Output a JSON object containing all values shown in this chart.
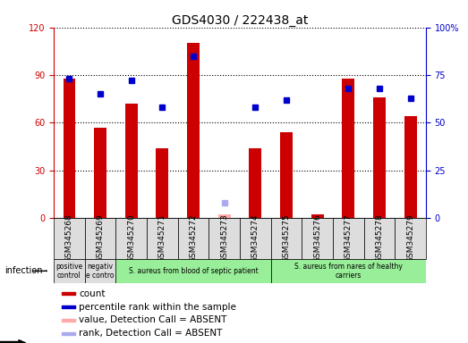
{
  "title": "GDS4030 / 222438_at",
  "samples": [
    "GSM345268",
    "GSM345269",
    "GSM345270",
    "GSM345271",
    "GSM345272",
    "GSM345273",
    "GSM345274",
    "GSM345275",
    "GSM345276",
    "GSM345277",
    "GSM345278",
    "GSM345279"
  ],
  "bar_values": [
    88,
    57,
    72,
    44,
    110,
    2,
    44,
    54,
    2,
    88,
    76,
    64
  ],
  "bar_absent": [
    false,
    false,
    false,
    false,
    false,
    true,
    false,
    false,
    false,
    false,
    false,
    false
  ],
  "rank_values": [
    73,
    65,
    72,
    58,
    85,
    8,
    58,
    62,
    null,
    68,
    68,
    63
  ],
  "rank_absent": [
    false,
    false,
    false,
    false,
    false,
    true,
    false,
    false,
    true,
    false,
    false,
    false
  ],
  "bar_color": "#cc0000",
  "bar_absent_color": "#ffaaaa",
  "rank_color": "#0000cc",
  "rank_absent_color": "#aaaaee",
  "ylim_left": [
    0,
    120
  ],
  "ylim_right": [
    0,
    100
  ],
  "yticks_left": [
    0,
    30,
    60,
    90,
    120
  ],
  "yticks_right": [
    0,
    25,
    50,
    75,
    100
  ],
  "ytick_labels_right": [
    "0",
    "25",
    "50",
    "75",
    "100%"
  ],
  "groups": [
    {
      "label": "positive\ncontrol",
      "start": 0,
      "end": 1,
      "color": "#dddddd"
    },
    {
      "label": "negativ\ne contro",
      "start": 1,
      "end": 2,
      "color": "#dddddd"
    },
    {
      "label": "S. aureus from blood of septic patient",
      "start": 2,
      "end": 7,
      "color": "#99ee99"
    },
    {
      "label": "S. aureus from nares of healthy\ncarriers",
      "start": 7,
      "end": 12,
      "color": "#99ee99"
    }
  ],
  "infection_label": "infection",
  "legend_items": [
    {
      "label": "count",
      "color": "#cc0000"
    },
    {
      "label": "percentile rank within the sample",
      "color": "#0000cc"
    },
    {
      "label": "value, Detection Call = ABSENT",
      "color": "#ffaaaa"
    },
    {
      "label": "rank, Detection Call = ABSENT",
      "color": "#aaaaee"
    }
  ],
  "bar_width": 0.4,
  "title_fontsize": 10,
  "tick_fontsize": 7,
  "legend_fontsize": 7.5
}
